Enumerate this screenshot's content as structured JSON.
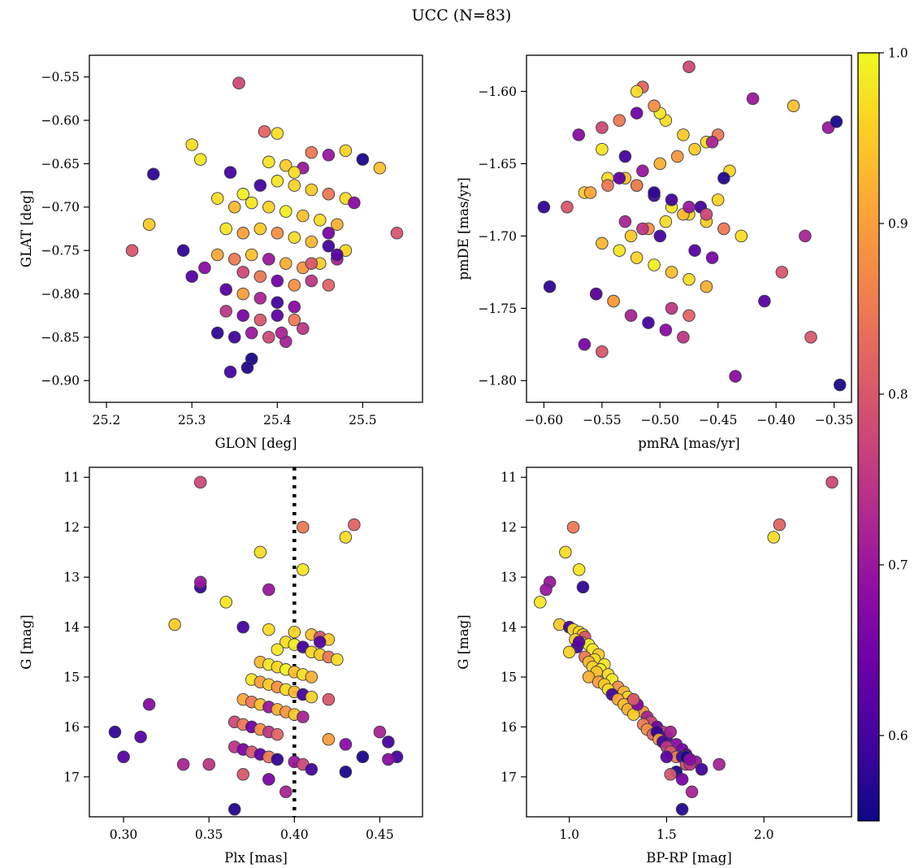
{
  "title": "UCC (N=83)",
  "colors": {
    "plasma_stops": [
      "#0d0887",
      "#41049d",
      "#6a00a8",
      "#8f0da4",
      "#b12a90",
      "#cc4778",
      "#e16462",
      "#f2844b",
      "#fca636",
      "#fcce25",
      "#f0f921"
    ],
    "marker_edge": "#3c3c48",
    "axis": "#000000",
    "dotted_line": "#000000",
    "background": "#ffffff"
  },
  "colorbar": {
    "min": 0.55,
    "max": 1.0,
    "ticks": [
      1.0,
      0.9,
      0.8,
      0.7,
      0.6
    ],
    "tick_decimals": 1
  },
  "panels": [
    {
      "id": "glon-glat",
      "xlabel": "GLON [deg]",
      "ylabel": "GLAT [deg]",
      "xrange": [
        25.18,
        25.57
      ],
      "yrange": [
        -0.525,
        -0.925
      ],
      "xticks": [
        25.2,
        25.3,
        25.4,
        25.5
      ],
      "yticks": [
        -0.55,
        -0.6,
        -0.65,
        -0.7,
        -0.75,
        -0.8,
        -0.85,
        -0.9
      ],
      "xdec": 1,
      "ydec": 2,
      "xkey": "glon",
      "ykey": "glat",
      "vline": null
    },
    {
      "id": "pmra-pmde",
      "xlabel": "pmRA [mas/yr]",
      "ylabel": "pmDE [mas/yr]",
      "xrange": [
        -0.615,
        -0.335
      ],
      "yrange": [
        -1.575,
        -1.815
      ],
      "xticks": [
        -0.6,
        -0.55,
        -0.5,
        -0.45,
        -0.4,
        -0.35
      ],
      "yticks": [
        -1.6,
        -1.65,
        -1.7,
        -1.75,
        -1.8
      ],
      "xdec": 2,
      "ydec": 2,
      "xkey": "pmra",
      "ykey": "pmde",
      "vline": null
    },
    {
      "id": "plx-g",
      "xlabel": "Plx [mas]",
      "ylabel": "G [mag]",
      "xrange": [
        0.28,
        0.475
      ],
      "yrange": [
        10.8,
        17.8
      ],
      "xticks": [
        0.3,
        0.35,
        0.4,
        0.45
      ],
      "yticks": [
        11,
        12,
        13,
        14,
        15,
        16,
        17
      ],
      "xdec": 2,
      "ydec": 0,
      "xkey": "plx",
      "ykey": "g",
      "vline": 0.4
    },
    {
      "id": "bprp-g",
      "xlabel": "BP-RP [mag]",
      "ylabel": "G [mag]",
      "xrange": [
        0.78,
        2.45
      ],
      "yrange": [
        10.8,
        17.8
      ],
      "xticks": [
        1.0,
        1.5,
        2.0
      ],
      "yticks": [
        11,
        12,
        13,
        14,
        15,
        16,
        17
      ],
      "xdec": 1,
      "ydec": 0,
      "xkey": "bprp",
      "ykey": "g",
      "vline": null
    }
  ],
  "chart_data": {
    "type": "scatter",
    "n": 83,
    "title": "UCC (N=83)",
    "color_key": "c",
    "color_range": [
      0.55,
      1.0
    ],
    "colormap": "plasma",
    "columns": [
      "glon",
      "glat",
      "pmra",
      "pmde",
      "plx",
      "g",
      "bprp",
      "c"
    ],
    "stars": [
      [
        25.355,
        -0.557,
        -0.475,
        -1.583,
        0.345,
        11.1,
        2.35,
        0.78
      ],
      [
        25.385,
        -0.613,
        -0.515,
        -1.597,
        0.435,
        11.95,
        2.08,
        0.82
      ],
      [
        25.3,
        -0.628,
        -0.495,
        -1.62,
        0.43,
        12.2,
        2.05,
        0.97
      ],
      [
        25.44,
        -0.637,
        -0.45,
        -1.63,
        0.405,
        12.0,
        1.02,
        0.85
      ],
      [
        25.4,
        -0.615,
        -0.52,
        -1.6,
        0.38,
        12.5,
        0.98,
        0.97
      ],
      [
        25.31,
        -0.645,
        -0.55,
        -1.64,
        0.405,
        12.85,
        1.05,
        0.98
      ],
      [
        25.255,
        -0.662,
        -0.6,
        -1.68,
        0.345,
        13.2,
        1.07,
        0.58
      ],
      [
        25.46,
        -0.64,
        -0.355,
        -1.625,
        0.345,
        13.1,
        0.9,
        0.7
      ],
      [
        25.43,
        -0.655,
        -0.42,
        -1.605,
        0.385,
        13.25,
        0.88,
        0.7
      ],
      [
        25.39,
        -0.648,
        -0.5,
        -1.615,
        0.36,
        13.5,
        0.85,
        0.98
      ],
      [
        25.41,
        -0.652,
        -0.48,
        -1.63,
        0.33,
        13.95,
        0.95,
        0.95
      ],
      [
        25.345,
        -0.66,
        -0.53,
        -1.645,
        0.37,
        14.0,
        1.0,
        0.6
      ],
      [
        25.42,
        -0.66,
        -0.46,
        -1.635,
        0.385,
        14.05,
        1.02,
        0.97
      ],
      [
        25.48,
        -0.635,
        -0.44,
        -1.655,
        0.4,
        14.1,
        1.05,
        0.96
      ],
      [
        25.52,
        -0.655,
        -0.385,
        -1.61,
        0.41,
        14.15,
        1.07,
        0.94
      ],
      [
        25.23,
        -0.75,
        -0.58,
        -1.68,
        0.415,
        14.2,
        1.08,
        0.8
      ],
      [
        25.25,
        -0.72,
        -0.565,
        -1.67,
        0.42,
        14.25,
        1.03,
        0.95
      ],
      [
        25.33,
        -0.69,
        -0.545,
        -1.66,
        0.395,
        14.3,
        1.06,
        0.97
      ],
      [
        25.36,
        -0.685,
        -0.52,
        -1.665,
        0.4,
        14.35,
        1.1,
        0.99
      ],
      [
        25.38,
        -0.675,
        -0.505,
        -1.672,
        0.405,
        14.4,
        1.04,
        0.6
      ],
      [
        25.4,
        -0.67,
        -0.49,
        -1.68,
        0.39,
        14.45,
        1.12,
        0.98
      ],
      [
        25.42,
        -0.675,
        -0.475,
        -1.685,
        0.41,
        14.5,
        1.0,
        0.96
      ],
      [
        25.44,
        -0.68,
        -0.46,
        -1.69,
        0.415,
        14.55,
        1.15,
        0.95
      ],
      [
        25.46,
        -0.685,
        -0.445,
        -1.695,
        0.42,
        14.6,
        1.08,
        0.85
      ],
      [
        25.48,
        -0.69,
        -0.43,
        -1.7,
        0.425,
        14.65,
        1.13,
        0.97
      ],
      [
        25.35,
        -0.7,
        -0.55,
        -1.705,
        0.38,
        14.7,
        1.1,
        0.93
      ],
      [
        25.37,
        -0.695,
        -0.535,
        -1.71,
        0.385,
        14.75,
        1.18,
        0.98
      ],
      [
        25.39,
        -0.7,
        -0.52,
        -1.715,
        0.39,
        14.8,
        1.12,
        0.96
      ],
      [
        25.41,
        -0.705,
        -0.505,
        -1.72,
        0.395,
        14.85,
        1.16,
        0.99
      ],
      [
        25.43,
        -0.71,
        -0.49,
        -1.725,
        0.4,
        14.9,
        1.14,
        0.94
      ],
      [
        25.45,
        -0.715,
        -0.475,
        -1.73,
        0.405,
        14.95,
        1.2,
        0.97
      ],
      [
        25.47,
        -0.72,
        -0.46,
        -1.735,
        0.41,
        15.0,
        1.1,
        0.92
      ],
      [
        25.34,
        -0.725,
        -0.555,
        -1.74,
        0.375,
        15.05,
        1.22,
        0.98
      ],
      [
        25.36,
        -0.73,
        -0.54,
        -1.745,
        0.38,
        15.1,
        1.15,
        0.9
      ],
      [
        25.38,
        -0.725,
        -0.525,
        -1.7,
        0.385,
        15.15,
        1.18,
        0.95
      ],
      [
        25.4,
        -0.73,
        -0.51,
        -1.695,
        0.39,
        15.2,
        1.25,
        0.88
      ],
      [
        25.42,
        -0.735,
        -0.495,
        -1.69,
        0.395,
        15.25,
        1.2,
        0.97
      ],
      [
        25.44,
        -0.74,
        -0.48,
        -1.685,
        0.4,
        15.3,
        1.28,
        0.93
      ],
      [
        25.46,
        -0.745,
        -0.465,
        -1.68,
        0.405,
        15.35,
        1.22,
        0.6
      ],
      [
        25.48,
        -0.75,
        -0.45,
        -1.675,
        0.41,
        15.4,
        1.3,
        0.96
      ],
      [
        25.33,
        -0.755,
        -0.56,
        -1.67,
        0.37,
        15.45,
        1.25,
        0.91
      ],
      [
        25.35,
        -0.76,
        -0.545,
        -1.665,
        0.375,
        15.5,
        1.32,
        0.85
      ],
      [
        25.37,
        -0.755,
        -0.53,
        -1.66,
        0.38,
        15.55,
        1.28,
        0.94
      ],
      [
        25.39,
        -0.76,
        -0.515,
        -1.655,
        0.385,
        15.6,
        1.35,
        0.7
      ],
      [
        25.41,
        -0.765,
        -0.5,
        -1.65,
        0.39,
        15.65,
        1.3,
        0.92
      ],
      [
        25.43,
        -0.77,
        -0.485,
        -1.645,
        0.395,
        15.7,
        1.38,
        0.89
      ],
      [
        25.45,
        -0.765,
        -0.47,
        -1.64,
        0.4,
        15.75,
        1.33,
        0.95
      ],
      [
        25.47,
        -0.76,
        -0.455,
        -1.635,
        0.405,
        15.8,
        1.4,
        0.72
      ],
      [
        25.315,
        -0.77,
        -0.57,
        -1.63,
        0.315,
        15.55,
        1.35,
        0.68
      ],
      [
        25.36,
        -0.775,
        -0.55,
        -1.625,
        0.365,
        15.9,
        1.42,
        0.78
      ],
      [
        25.38,
        -0.78,
        -0.535,
        -1.62,
        0.37,
        15.95,
        1.38,
        0.85
      ],
      [
        25.4,
        -0.785,
        -0.52,
        -1.615,
        0.375,
        16.0,
        1.45,
        0.65
      ],
      [
        25.42,
        -0.79,
        -0.505,
        -1.61,
        0.38,
        16.05,
        1.4,
        0.88
      ],
      [
        25.44,
        -0.785,
        -0.49,
        -1.75,
        0.385,
        16.1,
        1.48,
        0.75
      ],
      [
        25.46,
        -0.79,
        -0.475,
        -1.755,
        0.39,
        16.15,
        1.43,
        0.82
      ],
      [
        25.29,
        -0.75,
        -0.595,
        -1.735,
        0.295,
        16.1,
        1.45,
        0.58
      ],
      [
        25.34,
        -0.795,
        -0.555,
        -1.74,
        0.31,
        16.2,
        1.5,
        0.62
      ],
      [
        25.36,
        -0.8,
        -0.54,
        -1.745,
        0.42,
        16.25,
        1.46,
        0.9
      ],
      [
        25.38,
        -0.805,
        -0.525,
        -1.755,
        0.45,
        16.1,
        1.52,
        0.72
      ],
      [
        25.4,
        -0.81,
        -0.51,
        -1.76,
        0.455,
        16.3,
        1.48,
        0.6
      ],
      [
        25.42,
        -0.815,
        -0.495,
        -1.765,
        0.43,
        16.35,
        1.55,
        0.68
      ],
      [
        25.34,
        -0.82,
        -0.48,
        -1.77,
        0.365,
        16.4,
        1.5,
        0.75
      ],
      [
        25.36,
        -0.825,
        -0.565,
        -1.775,
        0.37,
        16.45,
        1.58,
        0.66
      ],
      [
        25.38,
        -0.83,
        -0.55,
        -1.78,
        0.375,
        16.5,
        1.52,
        0.8
      ],
      [
        25.4,
        -0.825,
        -0.535,
        -1.66,
        0.38,
        16.55,
        1.6,
        0.63
      ],
      [
        25.42,
        -0.83,
        -0.52,
        -1.665,
        0.385,
        16.6,
        1.55,
        0.85
      ],
      [
        25.33,
        -0.845,
        -0.505,
        -1.67,
        0.39,
        16.65,
        1.62,
        0.58
      ],
      [
        25.35,
        -0.85,
        -0.49,
        -1.675,
        0.46,
        16.6,
        1.58,
        0.6
      ],
      [
        25.37,
        -0.845,
        -0.475,
        -1.68,
        0.4,
        16.7,
        1.65,
        0.7
      ],
      [
        25.39,
        -0.85,
        -0.46,
        -1.685,
        0.405,
        16.75,
        1.6,
        0.78
      ],
      [
        25.41,
        -0.855,
        -0.53,
        -1.69,
        0.335,
        16.75,
        1.77,
        0.72
      ],
      [
        25.43,
        -0.84,
        -0.515,
        -1.695,
        0.35,
        16.75,
        1.62,
        0.75
      ],
      [
        25.345,
        -0.89,
        -0.5,
        -1.7,
        0.41,
        16.85,
        1.68,
        0.6
      ],
      [
        25.37,
        -0.875,
        -0.348,
        -1.621,
        0.43,
        16.9,
        1.55,
        0.56
      ],
      [
        25.3,
        -0.78,
        -0.47,
        -1.71,
        0.3,
        16.6,
        1.5,
        0.62
      ],
      [
        25.46,
        -0.73,
        -0.455,
        -1.715,
        0.385,
        17.05,
        1.58,
        0.66
      ],
      [
        25.54,
        -0.73,
        -0.37,
        -1.77,
        0.37,
        16.95,
        1.52,
        0.8
      ],
      [
        25.5,
        -0.645,
        -0.345,
        -1.803,
        0.44,
        16.6,
        1.6,
        0.56
      ],
      [
        25.49,
        -0.695,
        -0.435,
        -1.797,
        0.455,
        16.65,
        1.62,
        0.68
      ],
      [
        25.44,
        -0.765,
        -0.395,
        -1.725,
        0.42,
        15.45,
        1.33,
        0.8
      ],
      [
        25.47,
        -0.755,
        -0.41,
        -1.745,
        0.415,
        14.3,
        1.05,
        0.62
      ],
      [
        25.405,
        -0.845,
        -0.375,
        -1.7,
        0.395,
        17.3,
        1.63,
        0.72
      ],
      [
        25.365,
        -0.885,
        -0.445,
        -1.66,
        0.365,
        17.65,
        1.58,
        0.57
      ]
    ]
  }
}
